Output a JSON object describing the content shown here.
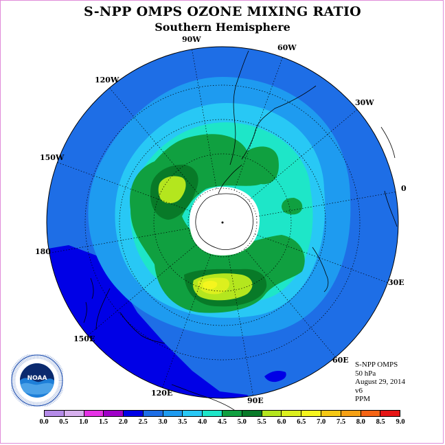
{
  "title": "S-NPP OMPS OZONE MIXING RATIO",
  "subtitle": "Southern Hemisphere",
  "longitude_labels": [
    "90W",
    "60W",
    "30W",
    "0",
    "30E",
    "60E",
    "90E",
    "120E",
    "150E",
    "180",
    "150W",
    "120W"
  ],
  "info": {
    "instrument": "S-NPP OMPS",
    "level": "50 hPa",
    "date": "August 29, 2014",
    "version": "v6",
    "units": "PPM"
  },
  "logo": {
    "text": "NOAA",
    "ring_text": "NATIONAL OCEANIC AND ATMOSPHERIC ADMINISTRATION · U.S. DEPARTMENT OF COMMERCE"
  },
  "colorbar": {
    "tick_labels": [
      "0.0",
      "0.5",
      "1.0",
      "1.5",
      "2.0",
      "2.5",
      "3.0",
      "3.5",
      "4.0",
      "4.5",
      "5.0",
      "5.5",
      "6.0",
      "6.5",
      "7.0",
      "7.5",
      "8.0",
      "8.5",
      "9.0"
    ],
    "colors": [
      "#b58be8",
      "#d7b0ee",
      "#e632e6",
      "#a000c8",
      "#0000e6",
      "#1e6ee6",
      "#1e9bf0",
      "#28c8f5",
      "#1ee6c8",
      "#10a040",
      "#087a28",
      "#b4e61e",
      "#dcf01e",
      "#f5f51e",
      "#f5c814",
      "#f5a014",
      "#f56414",
      "#e61414",
      "#7d4e2d"
    ]
  },
  "map_colors": {
    "band_2_0": "#0000e6",
    "band_2_5": "#1e6ee6",
    "band_3_0": "#1e9bf0",
    "band_3_5": "#28c8f5",
    "band_4_0": "#1ee6c8",
    "band_4_5": "#10a040",
    "band_5_0": "#087a28",
    "band_5_5": "#b4e61e",
    "band_6_0": "#dcf01e",
    "band_6_5": "#f5f51e"
  }
}
